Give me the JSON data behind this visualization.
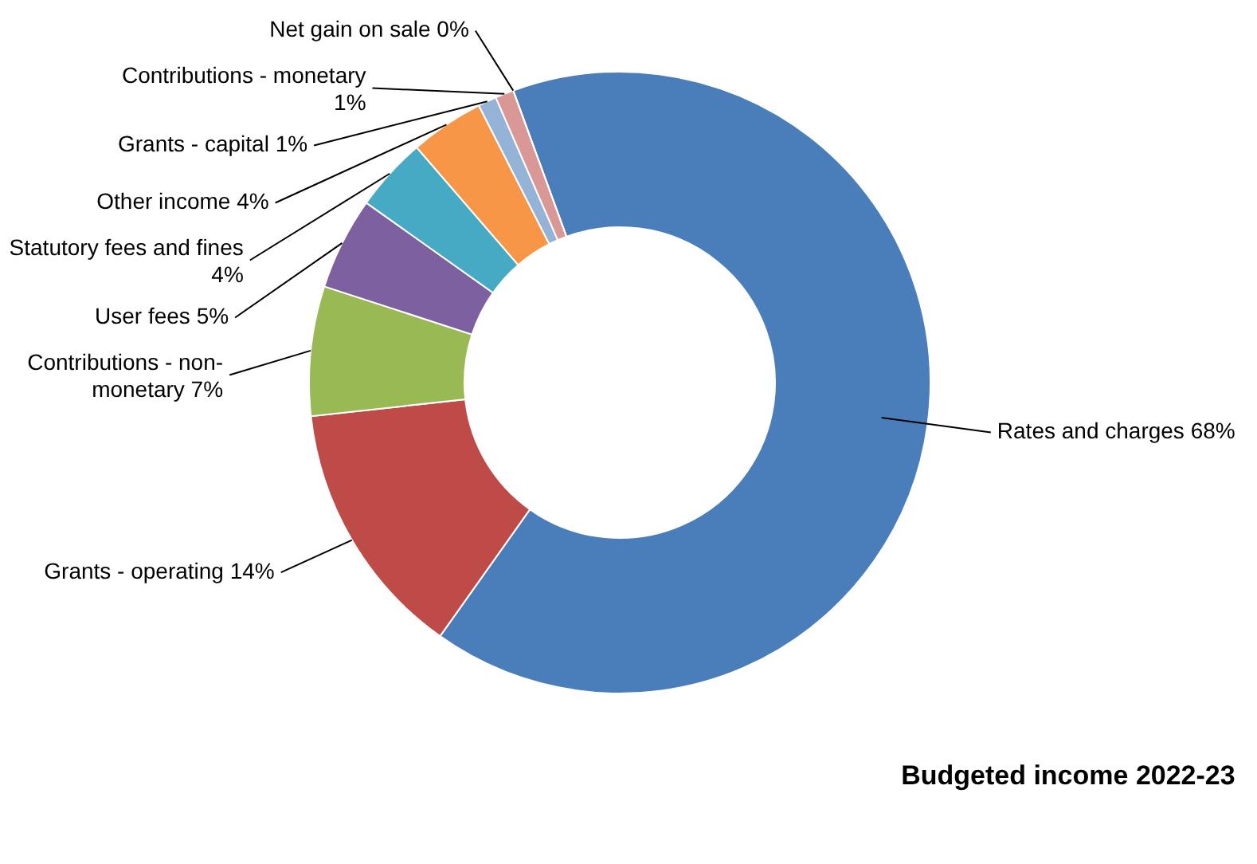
{
  "chart_data": {
    "type": "donut",
    "title": "Budgeted income 2022-23",
    "categories": [
      "Rates and charges",
      "Grants - operating",
      "Contributions - non-monetary",
      "User fees",
      "Statutory fees and fines",
      "Other income",
      "Grants - capital",
      "Contributions - monetary",
      "Net gain on sale"
    ],
    "values": [
      68,
      14,
      7,
      5,
      4,
      4,
      1,
      1,
      0
    ],
    "value_labels": [
      "68%",
      "14%",
      "7%",
      "5%",
      "4%",
      "4%",
      "1%",
      "1%",
      "0%"
    ],
    "colors": [
      "#4a7ebb",
      "#be4b48",
      "#98b954",
      "#7d60a0",
      "#46aac5",
      "#f79646",
      "#95b3d7",
      "#d99795",
      "#c3d69b"
    ],
    "legend": false
  }
}
